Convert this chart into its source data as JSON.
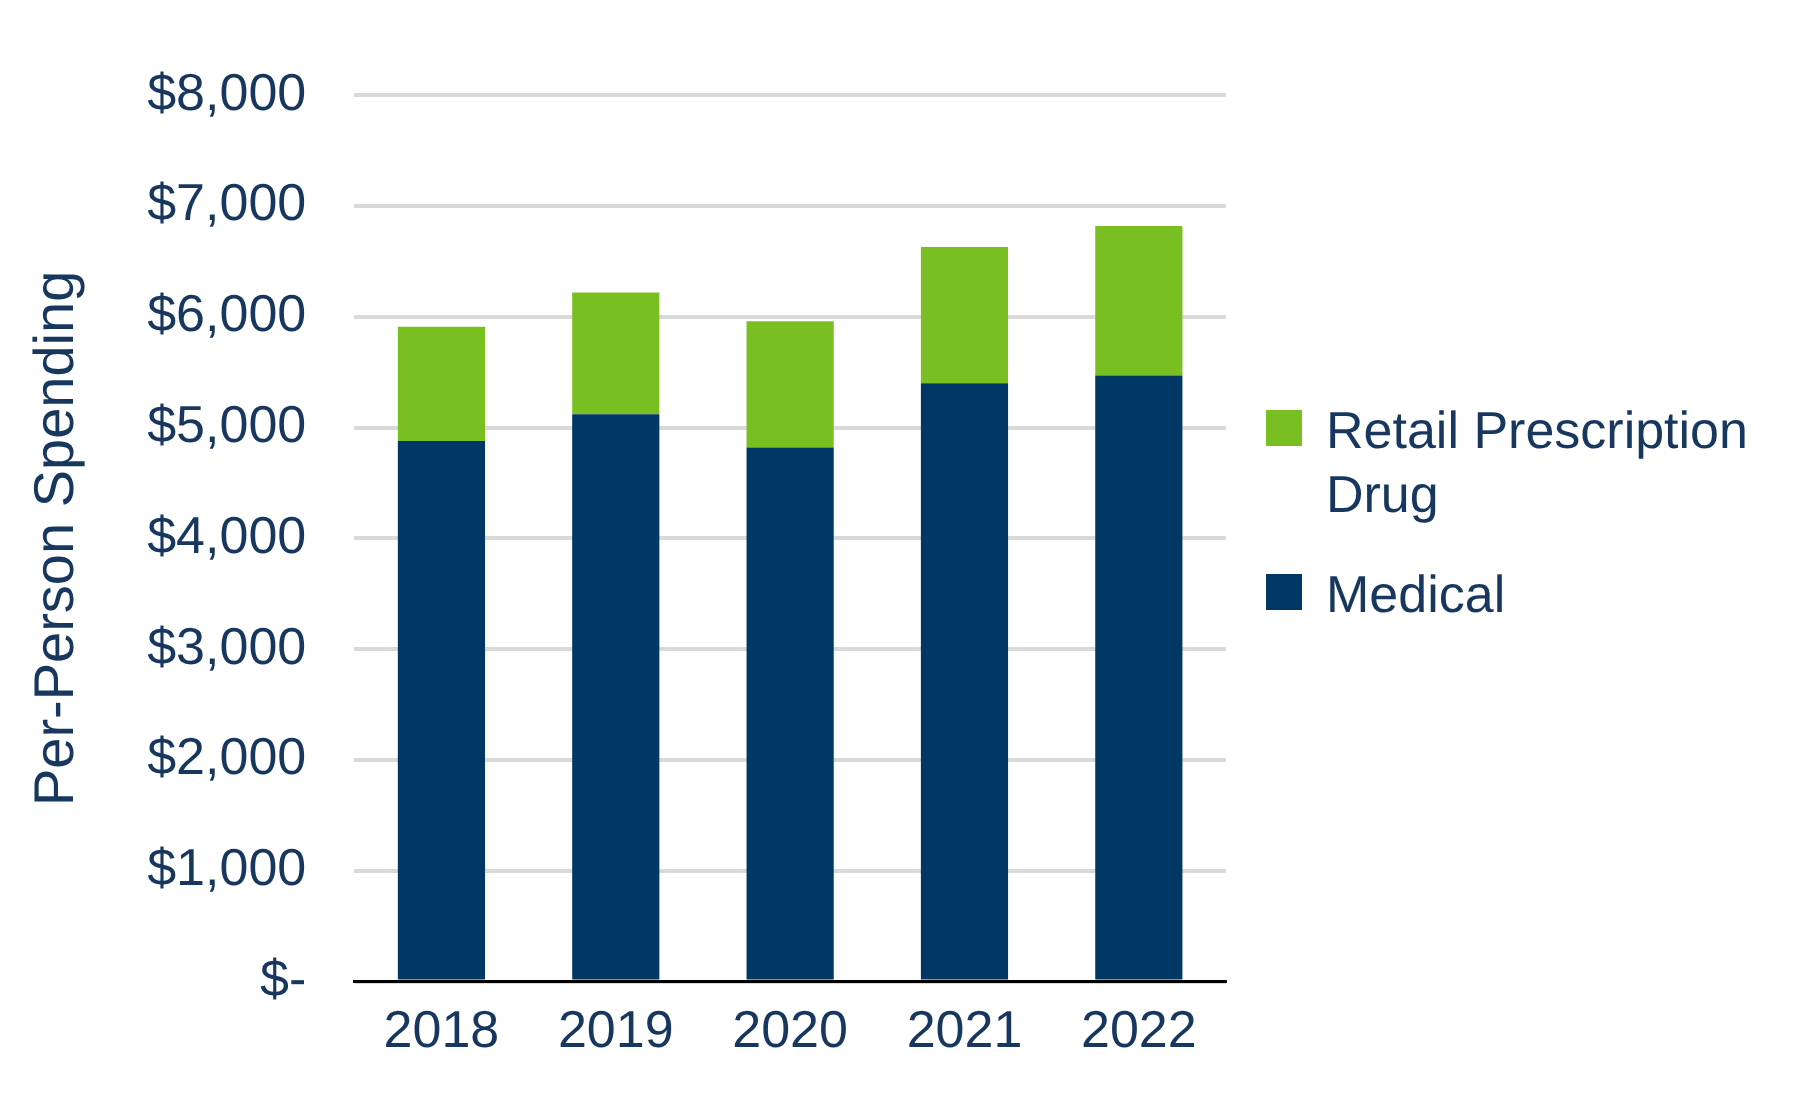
{
  "chart_data": {
    "type": "bar",
    "stacked": true,
    "ylabel": "Per-Person Spending",
    "categories": [
      "2018",
      "2019",
      "2020",
      "2021",
      "2022"
    ],
    "series": [
      {
        "name": "Medical",
        "color": "#003865",
        "values": [
          4880,
          5120,
          4820,
          5400,
          5470
        ]
      },
      {
        "name": "Retail Prescription Drug",
        "color": "#7abf22",
        "values": [
          1030,
          1100,
          1140,
          1230,
          1350
        ]
      }
    ],
    "ylim": [
      0,
      8000
    ],
    "yticks": [
      {
        "value": 0,
        "label": "$-"
      },
      {
        "value": 1000,
        "label": "$1,000"
      },
      {
        "value": 2000,
        "label": "$2,000"
      },
      {
        "value": 3000,
        "label": "$3,000"
      },
      {
        "value": 4000,
        "label": "$4,000"
      },
      {
        "value": 5000,
        "label": "$5,000"
      },
      {
        "value": 6000,
        "label": "$6,000"
      },
      {
        "value": 7000,
        "label": "$7,000"
      },
      {
        "value": 8000,
        "label": "$8,000"
      }
    ],
    "grid": "y",
    "legend": "right"
  }
}
